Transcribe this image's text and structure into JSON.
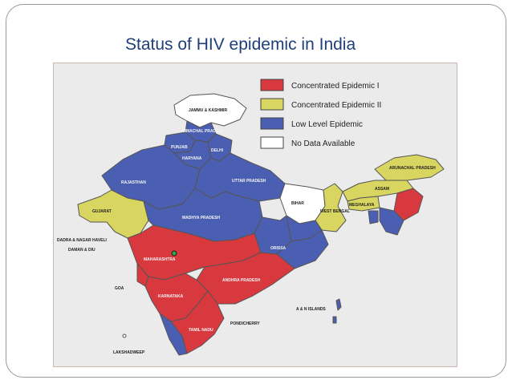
{
  "slide": {
    "title": "Status of HIV epidemic in India"
  },
  "colors": {
    "concentrated_1": "#d8393f",
    "concentrated_2": "#d8d560",
    "low_level": "#4b5fb2",
    "no_data": "#ffffff"
  },
  "legend": [
    {
      "label": "Concentrated Epidemic I",
      "color": "#d8393f"
    },
    {
      "label": "Concentrated Epidemic II",
      "color": "#d8d560"
    },
    {
      "label": "Low Level Epidemic",
      "color": "#4b5fb2"
    },
    {
      "label": "No Data Available",
      "color": "#ffffff"
    }
  ],
  "states": {
    "jammu_kashmir": "JAMMU & KASHMIR",
    "himachal": "HIMACHAL PRADESH",
    "punjab": "PUNJAB",
    "haryana": "HARYANA",
    "delhi": "DELHI",
    "rajasthan": "RAJASTHAN",
    "uttar_pradesh": "UTTAR PRADESH",
    "bihar": "BIHAR",
    "arunachal": "ARUNACHAL PRADESH",
    "assam": "ASSAM",
    "meghalaya": "MEGHALAYA",
    "gujarat": "GUJARAT",
    "madhya_pradesh": "MADHYA PRADESH",
    "west_bengal": "WEST BENGAL",
    "dadra": "DADRA & NAGAR HAVELI",
    "daman": "DAMAN & DIU",
    "maharashtra": "MAHARASHTRA",
    "orissa": "ORISSA",
    "andhra": "ANDHRA PRADESH",
    "goa": "GOA",
    "karnataka": "KARNATAKA",
    "andaman": "A & N ISLANDS",
    "pondicherry": "PONDICHERRY",
    "tamil_nadu": "TAMIL NADU",
    "lakshadweep": "LAKSHADWEEP"
  }
}
